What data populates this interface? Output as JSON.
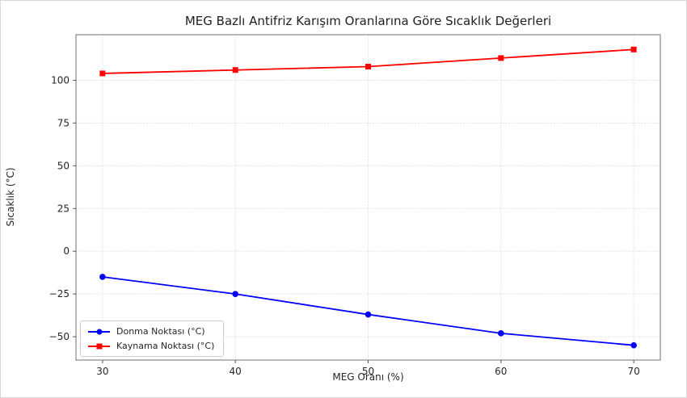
{
  "window": {
    "background": "#ffffff",
    "border_color": "#d8d8d8"
  },
  "chart_data": {
    "type": "line",
    "title": "MEG Bazlı Antifriz Karışım Oranlarına Göre Sıcaklık Değerleri",
    "xlabel": "MEG Oranı (%)",
    "ylabel": "Sıcaklık (°C)",
    "x": [
      30,
      40,
      50,
      60,
      70
    ],
    "series": [
      {
        "name": "Donma Noktası (°C)",
        "values": [
          -15,
          -25,
          -37,
          -48,
          -55
        ],
        "color": "#0000ff",
        "marker": "circle"
      },
      {
        "name": "Kaynama Noktası (°C)",
        "values": [
          104,
          106,
          108,
          113,
          118
        ],
        "color": "#ff0000",
        "marker": "square"
      }
    ],
    "xticks": [
      30,
      40,
      50,
      60,
      70
    ],
    "yticks": [
      -50,
      -25,
      0,
      25,
      50,
      75,
      100
    ],
    "xlim": [
      28,
      72
    ],
    "ylim": [
      -63.65,
      126.65
    ],
    "grid": true,
    "grid_style": "dotted",
    "legend_position": "lower-left"
  }
}
